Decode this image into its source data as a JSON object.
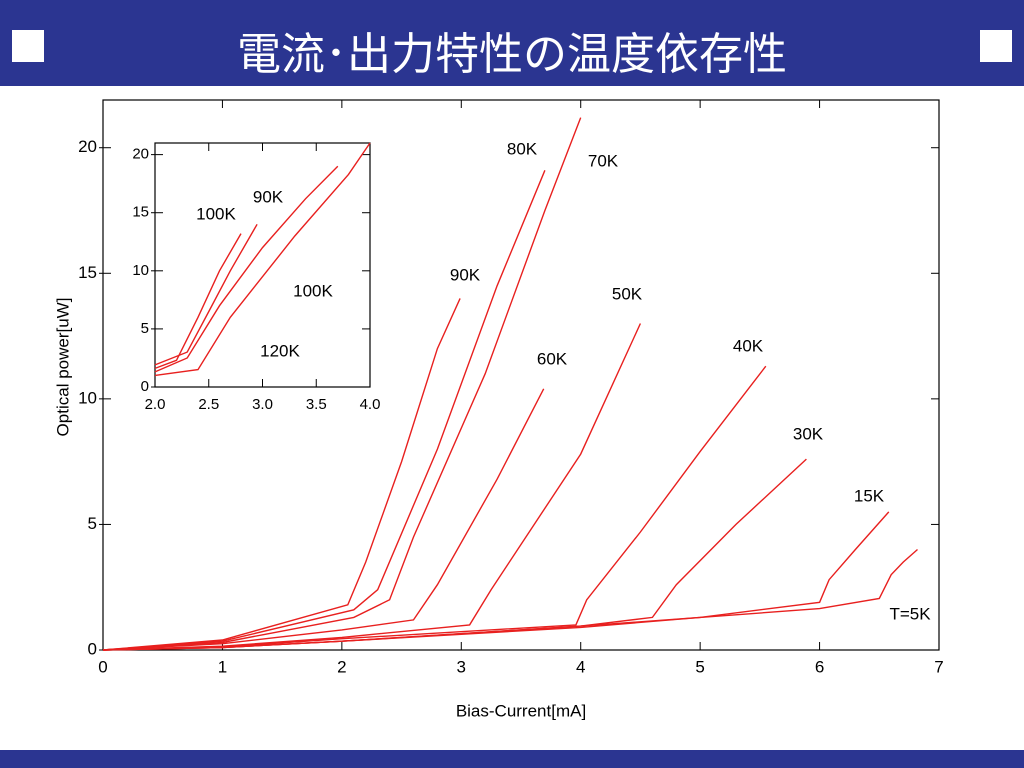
{
  "header": {
    "title": "電流･出力特性の温度依存性"
  },
  "chart_data": [
    {
      "type": "line",
      "xlabel": "Bias-Current[mA]",
      "ylabel": "Optical power[uW]",
      "xlim": [
        0,
        7
      ],
      "ylim": [
        0,
        21.9
      ],
      "xticks": [
        0,
        1,
        2,
        3,
        4,
        5,
        6,
        7
      ],
      "yticks": [
        0,
        5,
        10,
        15,
        20
      ],
      "series": [
        {
          "name": "90K",
          "color": "#e8201f",
          "x": [
            0,
            1,
            2.05,
            2.2,
            2.5,
            2.8,
            2.99
          ],
          "values": [
            0,
            0.4,
            1.8,
            3.5,
            7.5,
            12,
            14.0
          ]
        },
        {
          "name": "80K",
          "color": "#e8201f",
          "x": [
            0,
            1,
            2.1,
            2.3,
            2.8,
            3.3,
            3.7
          ],
          "values": [
            0,
            0.35,
            1.6,
            2.4,
            8,
            14.5,
            19.1
          ]
        },
        {
          "name": "70K",
          "color": "#e8201f",
          "x": [
            0,
            1,
            2.1,
            2.4,
            2.6,
            3.2,
            3.7,
            4.0
          ],
          "values": [
            0,
            0.3,
            1.3,
            2.0,
            4.5,
            11,
            17.5,
            21.2
          ]
        },
        {
          "name": "60K",
          "color": "#e8201f",
          "x": [
            0,
            1,
            2.0,
            2.6,
            2.8,
            3.3,
            3.69
          ],
          "values": [
            0,
            0.25,
            0.8,
            1.2,
            2.6,
            6.8,
            10.4
          ]
        },
        {
          "name": "50K",
          "color": "#e8201f",
          "x": [
            0,
            1,
            2,
            3.07,
            3.25,
            4.0,
            4.5
          ],
          "values": [
            0,
            0.15,
            0.5,
            1.0,
            2.4,
            7.8,
            13.0
          ]
        },
        {
          "name": "40K",
          "color": "#e8201f",
          "x": [
            0,
            1,
            2,
            3.96,
            4.05,
            4.5,
            5.0,
            5.55
          ],
          "values": [
            0,
            0.12,
            0.45,
            1.0,
            2.0,
            4.7,
            7.9,
            11.3
          ]
        },
        {
          "name": "30K",
          "color": "#e8201f",
          "x": [
            0,
            1,
            2,
            4.0,
            4.6,
            4.8,
            5.3,
            5.89
          ],
          "values": [
            0,
            0.1,
            0.35,
            0.95,
            1.3,
            2.6,
            5.0,
            7.6
          ]
        },
        {
          "name": "15K",
          "color": "#e8201f",
          "x": [
            0,
            1,
            2,
            4,
            5,
            6.0,
            6.08,
            6.3,
            6.58
          ],
          "values": [
            0,
            0.1,
            0.35,
            0.9,
            1.3,
            1.9,
            2.8,
            4.0,
            5.5
          ]
        },
        {
          "name": "T=5K",
          "color": "#e8201f",
          "x": [
            0,
            1,
            2,
            3,
            4,
            5,
            6,
            6.5,
            6.6,
            6.7,
            6.82
          ],
          "values": [
            0,
            0.1,
            0.35,
            0.65,
            0.95,
            1.3,
            1.65,
            2.05,
            3.0,
            3.5,
            4.0
          ]
        }
      ]
    },
    {
      "type": "line",
      "xlim": [
        2,
        4
      ],
      "ylim": [
        0,
        21
      ],
      "xticks": [
        {
          "value": 2,
          "label": "2.0"
        },
        {
          "value": 2.5,
          "label": "2.5"
        },
        {
          "value": 3,
          "label": "3.0"
        },
        {
          "value": 3.5,
          "label": "3.5"
        },
        {
          "value": 4,
          "label": "4.0"
        }
      ],
      "yticks": [
        0,
        5,
        10,
        15,
        20
      ],
      "series": [
        {
          "name": "100K",
          "color": "#e8201f",
          "x": [
            2.0,
            2.2,
            2.4,
            2.6,
            2.8
          ],
          "values": [
            1.6,
            2.3,
            6.0,
            10.0,
            13.2
          ]
        },
        {
          "name": "90K",
          "color": "#e8201f",
          "x": [
            2.0,
            2.3,
            2.5,
            2.7,
            2.95
          ],
          "values": [
            1.9,
            3.0,
            6.5,
            10.0,
            14.0
          ]
        },
        {
          "name": "100K",
          "color": "#e8201f",
          "x": [
            2.0,
            2.3,
            2.6,
            3.0,
            3.4,
            3.7
          ],
          "values": [
            1.3,
            2.5,
            7.0,
            12.0,
            16.2,
            19.0
          ]
        },
        {
          "name": "120K",
          "color": "#e8201f",
          "x": [
            2.0,
            2.4,
            2.7,
            3.3,
            3.8,
            4.0
          ],
          "values": [
            1.0,
            1.5,
            6.0,
            13.0,
            18.3,
            21.0
          ]
        }
      ]
    }
  ]
}
